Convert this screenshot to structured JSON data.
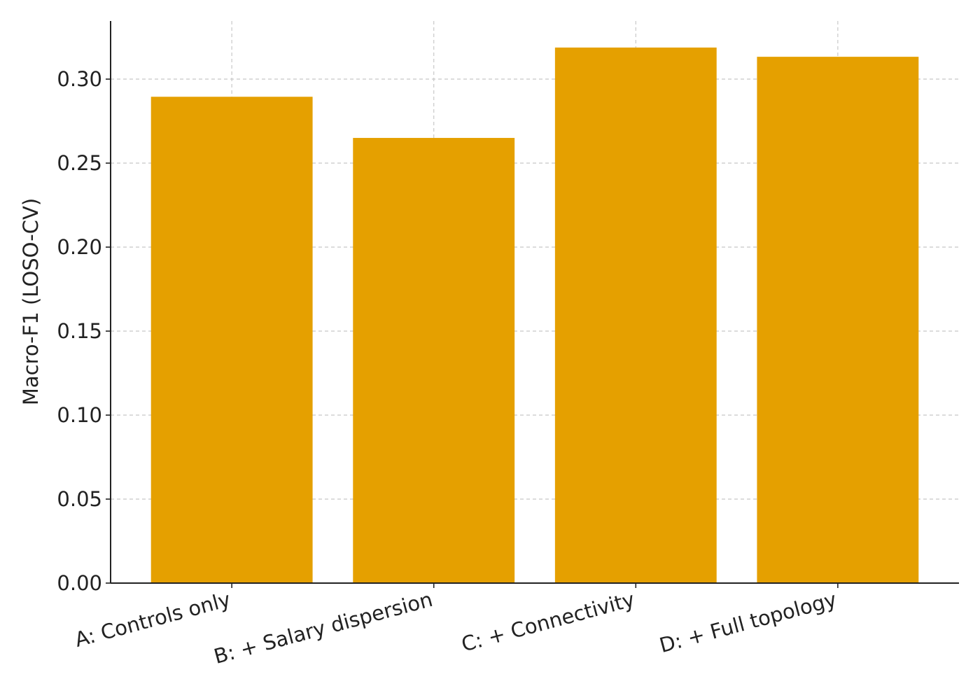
{
  "chart_data": {
    "type": "bar",
    "y_label": "Macro-F1 (LOSO-CV)",
    "categories": [
      "A: Controls only",
      "B: + Salary dispersion",
      "C: + Connectivity",
      "D: + Full topology"
    ],
    "values": [
      0.2895,
      0.265,
      0.3188,
      0.3133
    ],
    "color": "#e5a000",
    "ylim": [
      0,
      0.3346
    ],
    "yticks": [
      {
        "value": 0,
        "label": "0.00"
      },
      {
        "value": 0.05,
        "label": "0.05"
      },
      {
        "value": 0.1,
        "label": "0.10"
      },
      {
        "value": 0.15,
        "label": "0.15"
      },
      {
        "value": 0.2,
        "label": "0.20"
      },
      {
        "value": 0.25,
        "label": "0.25"
      },
      {
        "value": 0.3,
        "label": "0.30"
      }
    ],
    "grid": true
  }
}
